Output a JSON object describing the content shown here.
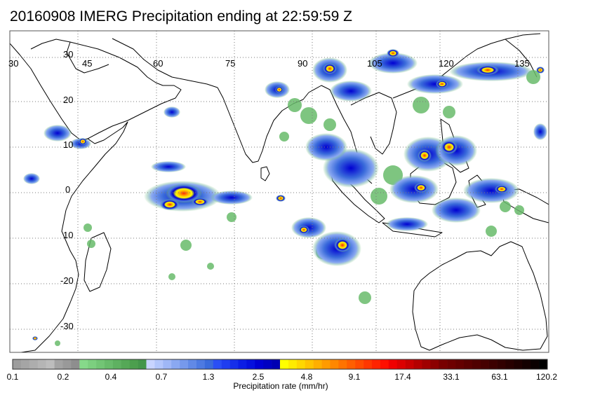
{
  "title": "20160908 IMERG Precipitation ending at 22:59:59 Z",
  "map": {
    "lon_labels": [
      "30",
      "45",
      "60",
      "75",
      "90",
      "105",
      "120",
      "135"
    ],
    "lat_labels": [
      "30",
      "20",
      "10",
      "0",
      "10",
      "-20",
      "-30"
    ],
    "grid": "dotted"
  },
  "colorbar": {
    "title": "Precipitation rate (mm/hr)",
    "tick_labels": [
      "0.1",
      "0.2",
      "0.4",
      "0.7",
      "1.3",
      "2.5",
      "4.8",
      "9.1",
      "17.4",
      "33.1",
      "63.1",
      "120.2"
    ],
    "colors": [
      "#9d9d9d",
      "#a5a5a5",
      "#adadad",
      "#b5b5b5",
      "#bdbdbd",
      "#a3a3a3",
      "#999999",
      "#8e8e8e",
      "#86d98a",
      "#7ccf7f",
      "#72c575",
      "#68bb6b",
      "#5eb161",
      "#55a857",
      "#4c9f4e",
      "#43964a",
      "#c8d4ff",
      "#b3c6fb",
      "#9fb7f6",
      "#8aa8f1",
      "#7699ec",
      "#6189e6",
      "#4d7ae1",
      "#3a6bdb",
      "#2a4ff5",
      "#1f3ef0",
      "#152eea",
      "#0b1de5",
      "#0510de",
      "#0000d2",
      "#0000c2",
      "#0000b3",
      "#ffff00",
      "#ffeb00",
      "#ffd700",
      "#ffc300",
      "#ffaf00",
      "#ff9b00",
      "#ff8700",
      "#ff7300",
      "#ff5f00",
      "#ff4b00",
      "#ff3700",
      "#ff2300",
      "#ff0f00",
      "#f00000",
      "#dc0000",
      "#c80000",
      "#b40000",
      "#a00000",
      "#8c0000",
      "#780000",
      "#6e0000",
      "#640000",
      "#5a0000",
      "#500000",
      "#460000",
      "#3c0000",
      "#320000",
      "#280000",
      "#1e0000",
      "#140000",
      "#0a0000",
      "#000000"
    ]
  }
}
